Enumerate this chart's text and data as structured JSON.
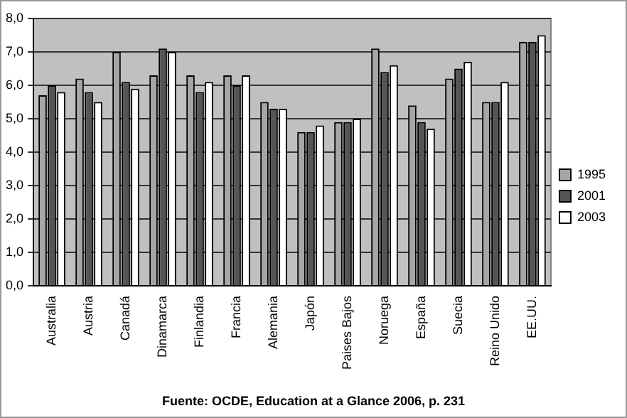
{
  "chart_data": {
    "type": "bar",
    "annotations": [
      "Fuente: OCDE, Education at a Glance 2006, p. 231"
    ],
    "categories": [
      "Australia",
      "Austria",
      "Canadá",
      "Dinamarca",
      "Finlandia",
      "Francia",
      "Alemania",
      "Japón",
      "Paises Bajos",
      "Noruega",
      "España",
      "Suecia",
      "Reino Unido",
      "EE.UU."
    ],
    "series": [
      {
        "name": "1995",
        "color": "#a6a6a6",
        "values": [
          5.7,
          6.2,
          7.0,
          6.3,
          6.3,
          6.3,
          5.5,
          4.6,
          4.9,
          7.1,
          5.4,
          6.2,
          5.5,
          7.3
        ]
      },
      {
        "name": "2001",
        "color": "#555555",
        "values": [
          6.0,
          5.8,
          6.1,
          7.1,
          5.8,
          6.0,
          5.3,
          4.6,
          4.9,
          6.4,
          4.9,
          6.5,
          5.5,
          7.3
        ]
      },
      {
        "name": "2003",
        "color": "#ffffff",
        "values": [
          5.8,
          5.5,
          5.9,
          7.0,
          6.1,
          6.3,
          5.3,
          4.8,
          5.0,
          6.6,
          4.7,
          6.7,
          6.1,
          7.5
        ]
      }
    ],
    "ylim": [
      0,
      8
    ],
    "yticks": [
      {
        "value": 0,
        "label": "0,0"
      },
      {
        "value": 1,
        "label": "1,0"
      },
      {
        "value": 2,
        "label": "2,0"
      },
      {
        "value": 3,
        "label": "3,0"
      },
      {
        "value": 4,
        "label": "4,0"
      },
      {
        "value": 5,
        "label": "5,0"
      },
      {
        "value": 6,
        "label": "6,0"
      },
      {
        "value": 7,
        "label": "7,0"
      },
      {
        "value": 8,
        "label": "8,0"
      }
    ],
    "grid": "y",
    "legend": "right"
  }
}
